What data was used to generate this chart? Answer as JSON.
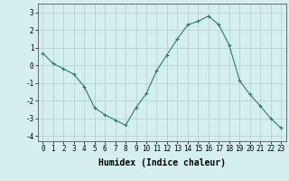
{
  "x": [
    0,
    1,
    2,
    3,
    4,
    5,
    6,
    7,
    8,
    9,
    10,
    11,
    12,
    13,
    14,
    15,
    16,
    17,
    18,
    19,
    20,
    21,
    22,
    23
  ],
  "y": [
    0.7,
    0.1,
    -0.2,
    -0.5,
    -1.2,
    -2.4,
    -2.8,
    -3.1,
    -3.4,
    -2.4,
    -1.6,
    -0.3,
    0.6,
    1.5,
    2.3,
    2.5,
    2.8,
    2.3,
    1.15,
    -0.85,
    -1.65,
    -2.3,
    -3.0,
    -3.55
  ],
  "line_color": "#2d7a6e",
  "marker": "+",
  "marker_size": 3,
  "background_color": "#d5efef",
  "grid_color": "#b0d0d0",
  "xlabel": "Humidex (Indice chaleur)",
  "xlim": [
    -0.5,
    23.5
  ],
  "ylim": [
    -4.3,
    3.5
  ],
  "yticks": [
    -4,
    -3,
    -2,
    -1,
    0,
    1,
    2,
    3
  ],
  "xticks": [
    0,
    1,
    2,
    3,
    4,
    5,
    6,
    7,
    8,
    9,
    10,
    11,
    12,
    13,
    14,
    15,
    16,
    17,
    18,
    19,
    20,
    21,
    22,
    23
  ],
  "tick_fontsize": 5.5,
  "xlabel_fontsize": 7.0
}
